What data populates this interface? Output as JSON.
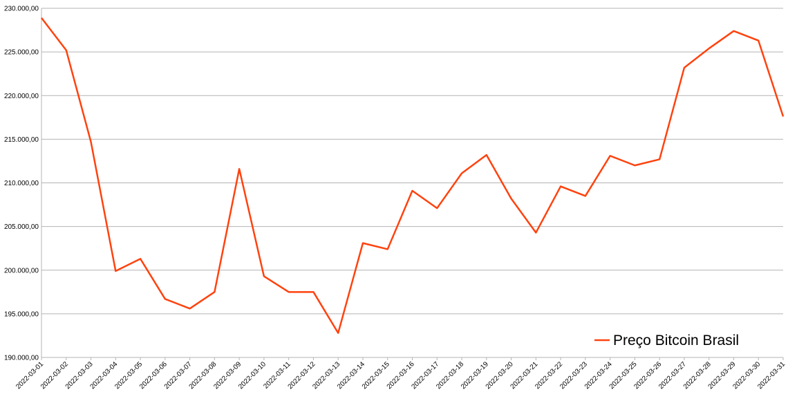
{
  "chart_data": {
    "type": "line",
    "categories": [
      "2022-03-01",
      "2022-03-02",
      "2022-03-03",
      "2022-03-04",
      "2022-03-05",
      "2022-03-06",
      "2022-03-07",
      "2022-03-08",
      "2022-03-09",
      "2022-03-10",
      "2022-03-11",
      "2022-03-12",
      "2022-03-13",
      "2022-03-14",
      "2022-03-15",
      "2022-03-16",
      "2022-03-17",
      "2022-03-18",
      "2022-03-19",
      "2022-03-20",
      "2022-03-21",
      "2022-03-22",
      "2022-03-23",
      "2022-03-24",
      "2022-03-25",
      "2022-03-26",
      "2022-03-27",
      "2022-03-28",
      "2022-03-29",
      "2022-03-30",
      "2022-03-31"
    ],
    "series": [
      {
        "name": "Preço Bitcoin Brasil",
        "color": "#ff420e",
        "values": [
          228900,
          225200,
          214700,
          199900,
          201300,
          196700,
          195600,
          197500,
          211600,
          199300,
          197500,
          197500,
          192800,
          203100,
          202400,
          209100,
          207100,
          211100,
          213200,
          208200,
          204300,
          209600,
          208500,
          213100,
          212000,
          212700,
          223200,
          225400,
          227400,
          226300,
          217600
        ]
      }
    ],
    "ylim": [
      190000,
      230000
    ],
    "yticks": [
      {
        "value": 190000,
        "label": "190.000,00"
      },
      {
        "value": 195000,
        "label": "195.000,00"
      },
      {
        "value": 200000,
        "label": "200.000,00"
      },
      {
        "value": 205000,
        "label": "205.000,00"
      },
      {
        "value": 210000,
        "label": "210.000,00"
      },
      {
        "value": 215000,
        "label": "215.000,00"
      },
      {
        "value": 220000,
        "label": "220.000,00"
      },
      {
        "value": 225000,
        "label": "225.000,00"
      },
      {
        "value": 230000,
        "label": "230.000,00"
      }
    ],
    "grid": true,
    "legend": "bottom-right"
  }
}
